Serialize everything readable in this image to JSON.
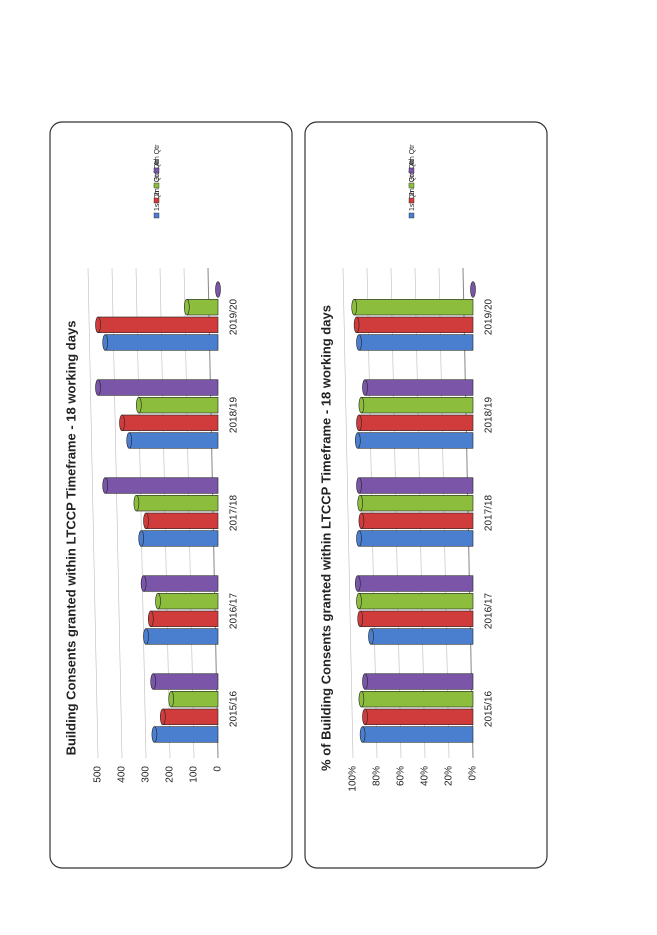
{
  "chart_data": [
    {
      "type": "bar",
      "title": "Building Consents granted within LTCCP Timeframe - 18 working days",
      "categories": [
        "2015/16",
        "2016/17",
        "2017/18",
        "2018/19",
        "2019/20"
      ],
      "series": [
        {
          "name": "1st Qtr",
          "color": "#4a7fd0",
          "values": [
            265,
            300,
            320,
            370,
            470
          ]
        },
        {
          "name": "2nd Qtr",
          "color": "#d03c3c",
          "values": [
            230,
            280,
            300,
            400,
            500
          ]
        },
        {
          "name": "3rd Qtr",
          "color": "#8cbd3c",
          "values": [
            195,
            250,
            340,
            330,
            130
          ]
        },
        {
          "name": "4th Qtr",
          "color": "#7a55a8",
          "values": [
            270,
            310,
            470,
            500,
            0
          ]
        }
      ],
      "ylim": [
        0,
        500
      ],
      "yticks": [
        0,
        100,
        200,
        300,
        400,
        500
      ],
      "grid": true
    },
    {
      "type": "bar",
      "title": "% of Building Consents granted within LTCCP Timeframe - 18 working days",
      "categories": [
        "2015/16",
        "2016/17",
        "2017/18",
        "2018/19",
        "2019/20"
      ],
      "series": [
        {
          "name": "1st Qtr",
          "color": "#4a7fd0",
          "values": [
            92,
            85,
            95,
            96,
            95
          ]
        },
        {
          "name": "2nd Qtr",
          "color": "#d03c3c",
          "values": [
            90,
            94,
            93,
            95,
            97
          ]
        },
        {
          "name": "3rd Qtr",
          "color": "#8cbd3c",
          "values": [
            93,
            95,
            94,
            93,
            99
          ]
        },
        {
          "name": "4th Qtr",
          "color": "#7a55a8",
          "values": [
            90,
            96,
            95,
            90,
            0
          ]
        }
      ],
      "ylim": [
        0,
        100
      ],
      "yticks": [
        {
          "value": 0,
          "label": "0%"
        },
        {
          "value": 20,
          "label": "20%"
        },
        {
          "value": 40,
          "label": "40%"
        },
        {
          "value": 60,
          "label": "60%"
        },
        {
          "value": 80,
          "label": "80%"
        },
        {
          "value": 100,
          "label": "100%"
        }
      ],
      "grid": true
    }
  ]
}
